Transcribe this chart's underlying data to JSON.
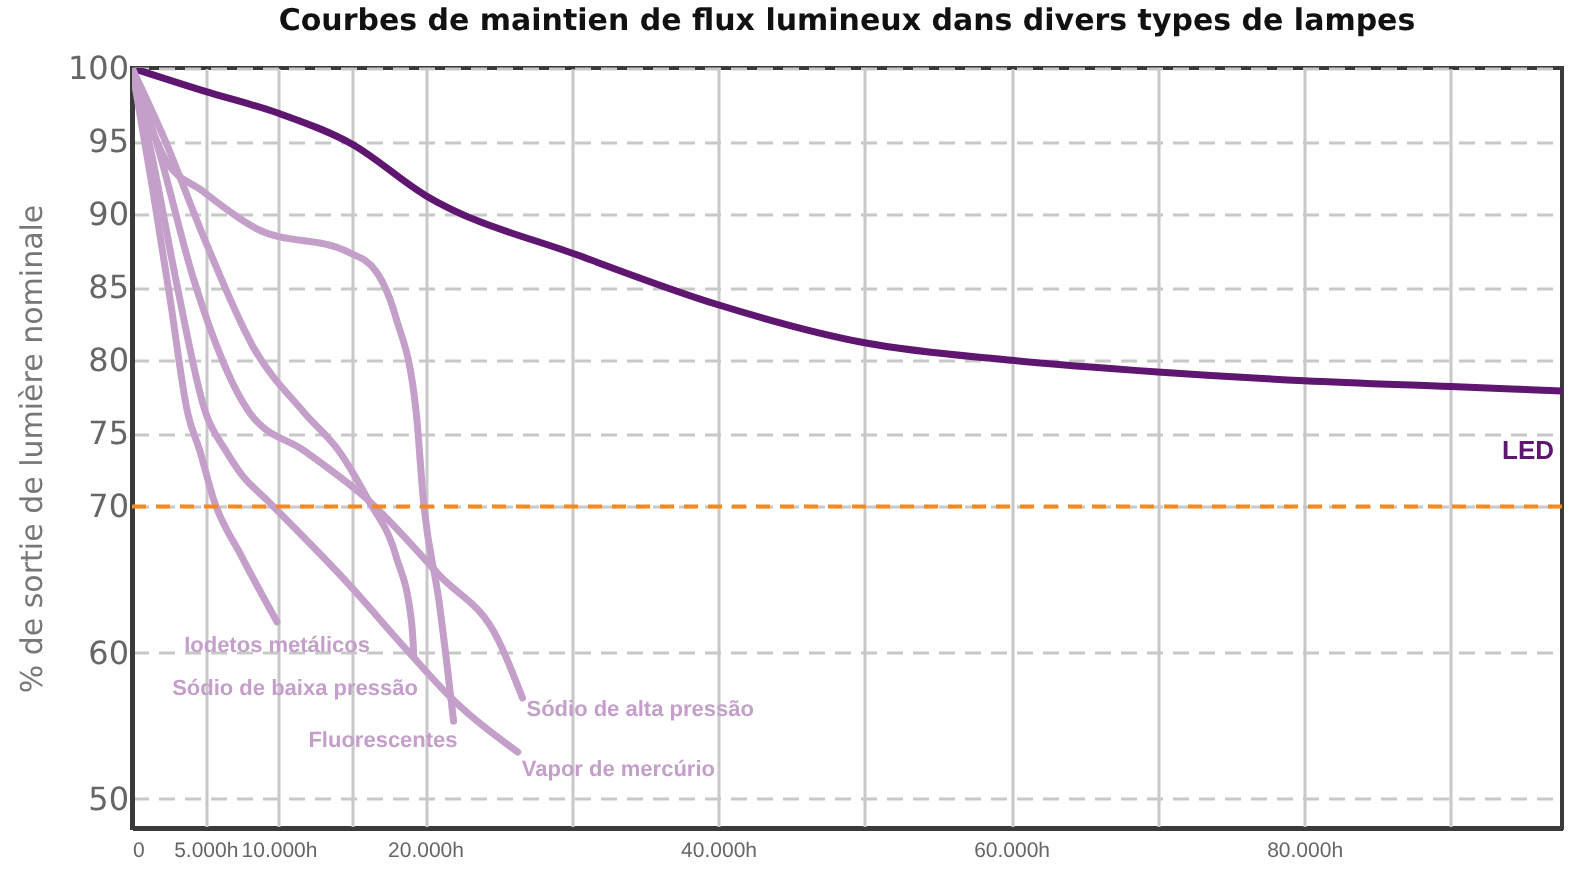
{
  "chart_data": {
    "type": "line",
    "title": "Courbes de maintien de flux lumineux dans divers types de lampes",
    "ylabel": "% de sortie de lumière nominale",
    "xlim": [
      0,
      97600
    ],
    "ylim": [
      48,
      100
    ],
    "xticks": [
      0,
      {
        "value": 5000,
        "label": "5.000h"
      },
      {
        "value": 10000,
        "label": "10.000h"
      },
      {
        "value": 15000,
        "label": null
      },
      {
        "value": 20000,
        "label": "20.000h"
      },
      {
        "value": 30000,
        "label": null
      },
      {
        "value": 40000,
        "label": "40.000h"
      },
      {
        "value": 50000,
        "label": null
      },
      {
        "value": 60000,
        "label": "60.000h"
      },
      {
        "value": 70000,
        "label": null
      },
      {
        "value": 80000,
        "label": "80.000h"
      },
      {
        "value": 90000,
        "label": null
      }
    ],
    "yticks": [
      50,
      60,
      70,
      75,
      80,
      85,
      90,
      95,
      100
    ],
    "grid": true,
    "ref_lines": [
      {
        "axis": "y",
        "value": 70,
        "color": "#f5891f",
        "line_style": "dashed"
      }
    ],
    "series": [
      {
        "name": "LED",
        "color": "#5f1670",
        "x": [
          0,
          5000,
          10000,
          15000,
          20000,
          30700,
          40000,
          50000,
          60000,
          70000,
          80000,
          90000,
          97600
        ],
        "values": [
          100,
          98.4,
          96.9,
          94.8,
          91.3,
          87.1,
          83.8,
          81.2,
          80.0,
          79.2,
          78.6,
          78.2,
          77.9
        ]
      },
      {
        "name": "Iodetos metálicos",
        "color": "#c49fc9",
        "x": [
          0,
          1380,
          2600,
          3800,
          4630,
          5600,
          7470,
          9900
        ],
        "values": [
          100,
          91.9,
          84.2,
          76.4,
          73.8,
          70.4,
          66.6,
          62.1
        ]
      },
      {
        "name": "Sódio de baixa pressão",
        "color": "#c49fc9",
        "x": [
          0,
          2190,
          5030,
          8280,
          11770,
          14120,
          16150,
          18020,
          19080,
          19240
        ],
        "values": [
          100,
          95.2,
          88.1,
          80.9,
          76.4,
          73.8,
          70.4,
          66.6,
          62.1,
          59.7
        ]
      },
      {
        "name": "Fluorescentes",
        "color": "#c49fc9",
        "x": [
          0,
          2360,
          4790,
          8520,
          14770,
          16640,
          18020,
          19400,
          19890,
          20970,
          21950
        ],
        "values": [
          100,
          93.6,
          91.6,
          89.0,
          87.4,
          86.1,
          82.9,
          76.4,
          70.4,
          63.4,
          55.3
        ]
      },
      {
        "name": "Sódio de alta pressão",
        "color": "#c49fc9",
        "x": [
          0,
          1790,
          4220,
          8040,
          11770,
          16150,
          20970,
          25030,
          26650
        ],
        "values": [
          100,
          94.5,
          85.5,
          76.4,
          73.8,
          70.4,
          65.3,
          60.8,
          56.9
        ]
      },
      {
        "name": "Vapor de mercúrio",
        "color": "#c49fc9",
        "x": [
          0,
          1380,
          3000,
          5030,
          6410,
          7470,
          9250,
          14770,
          18830,
          21790,
          26330
        ],
        "values": [
          100,
          93.9,
          85.5,
          76.4,
          73.8,
          72.2,
          70.4,
          64.7,
          60.1,
          56.9,
          53.2
        ]
      }
    ]
  }
}
